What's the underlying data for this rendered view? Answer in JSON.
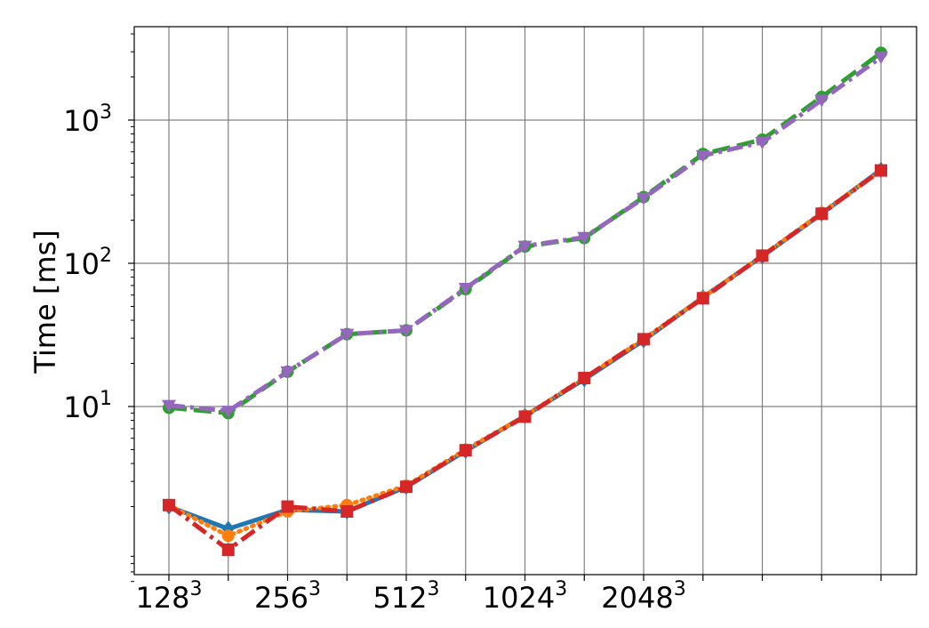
{
  "chart_data": {
    "type": "line",
    "title": "",
    "xlabel": "",
    "ylabel": "Time [ms]",
    "y_scale": "log",
    "ylim": [
      0.55,
      4500
    ],
    "grid": true,
    "x": [
      128,
      161,
      203,
      256,
      323,
      406,
      512,
      645,
      813,
      1024,
      1290,
      1625,
      2048
    ],
    "x_tick_labels": [
      {
        "base": "128",
        "exp": "3"
      },
      {
        "base": "256",
        "exp": "3"
      },
      {
        "base": "512",
        "exp": "3"
      },
      {
        "base": "1024",
        "exp": "3"
      },
      {
        "base": "2048",
        "exp": "3"
      }
    ],
    "y_tick_labels": [
      {
        "base": "10",
        "exp": "1"
      },
      {
        "base": "10",
        "exp": "2"
      },
      {
        "base": "10",
        "exp": "3"
      }
    ],
    "series": [
      {
        "color": "#1f77b4",
        "linestyle": "solid",
        "marker": "diamond",
        "values": [
          2.0,
          1.4,
          1.9,
          1.85,
          2.75,
          4.9,
          8.6,
          15.5,
          29,
          58,
          112,
          222,
          450
        ]
      },
      {
        "color": "#ff7f0e",
        "linestyle": "dotted",
        "marker": "circle",
        "values": [
          2.05,
          1.25,
          1.85,
          2.05,
          2.8,
          5.0,
          8.6,
          15.8,
          29.5,
          58,
          113,
          225,
          445
        ]
      },
      {
        "color": "#2ca02c",
        "linestyle": "dashed",
        "marker": "circle",
        "values": [
          9.8,
          9.0,
          17.5,
          32,
          34,
          66,
          131,
          150,
          290,
          580,
          730,
          1450,
          2950
        ]
      },
      {
        "color": "#d62728",
        "linestyle": "dashdot",
        "marker": "square",
        "values": [
          2.05,
          1.0,
          2.0,
          1.85,
          2.75,
          4.95,
          8.5,
          15.8,
          29.5,
          57,
          113,
          222,
          445
        ]
      },
      {
        "color": "#9467bd",
        "linestyle": "dashdot",
        "marker": "triangle-down",
        "values": [
          10.2,
          9.3,
          17.5,
          32,
          34,
          67,
          132,
          152,
          285,
          565,
          700,
          1380,
          2750
        ]
      }
    ]
  }
}
